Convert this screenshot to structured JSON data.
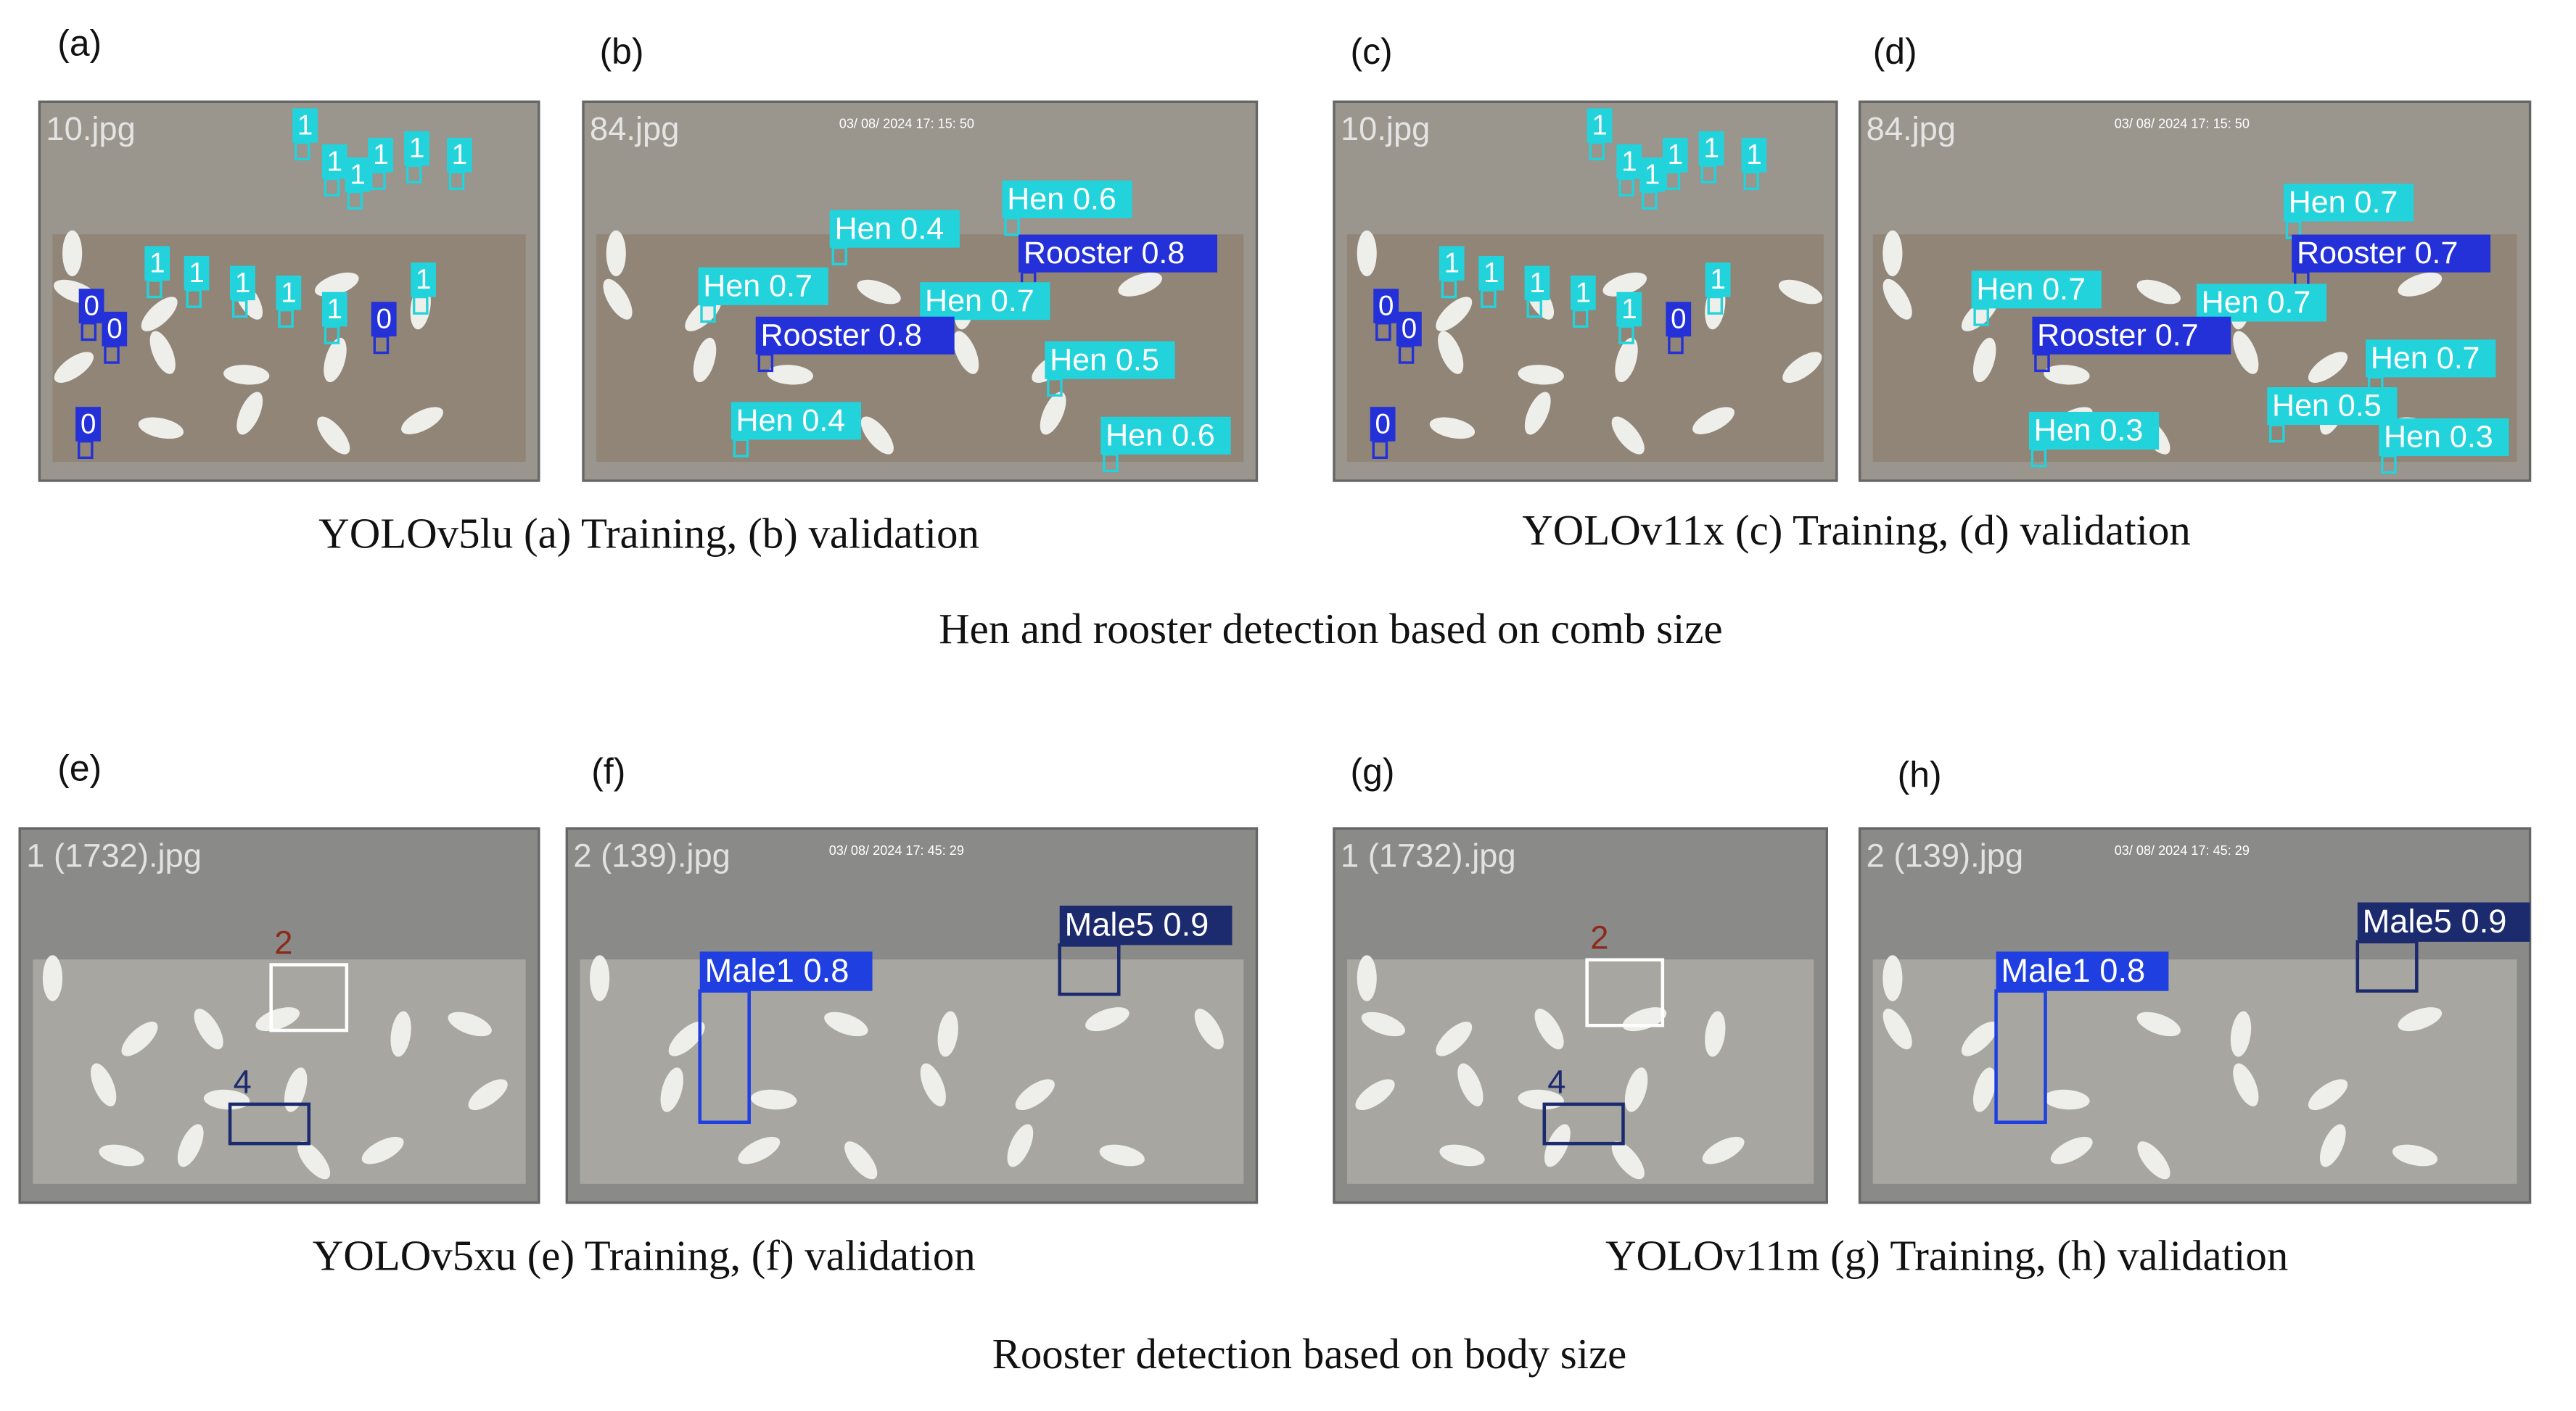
{
  "figure": {
    "panels": [
      {
        "label": "(a)",
        "file": "10.jpg",
        "detections": [
          {
            "label": "1",
            "color": "#22d3dc"
          },
          {
            "label": "1",
            "color": "#22d3dc"
          },
          {
            "label": "1",
            "color": "#22d3dc"
          },
          {
            "label": "1",
            "color": "#22d3dc"
          },
          {
            "label": "1",
            "color": "#22d3dc"
          },
          {
            "label": "1",
            "color": "#22d3dc"
          },
          {
            "label": "1",
            "color": "#22d3dc"
          },
          {
            "label": "1",
            "color": "#22d3dc"
          },
          {
            "label": "1",
            "color": "#22d3dc"
          },
          {
            "label": "1",
            "color": "#22d3dc"
          },
          {
            "label": "1",
            "color": "#22d3dc"
          },
          {
            "label": "1",
            "color": "#22d3dc"
          },
          {
            "label": "0",
            "color": "#2430d8"
          },
          {
            "label": "0",
            "color": "#2430d8"
          },
          {
            "label": "0",
            "color": "#2430d8"
          },
          {
            "label": "0",
            "color": "#2430d8"
          }
        ]
      },
      {
        "label": "(b)",
        "file": "84.jpg",
        "stamp": "03/ 08/ 2024 17: 15: 50",
        "detections": [
          {
            "label": "Hen 0.6",
            "color": "#22d3dc"
          },
          {
            "label": "Hen 0.4",
            "color": "#22d3dc"
          },
          {
            "label": "Rooster 0.8",
            "color": "#2430d8"
          },
          {
            "label": "Hen 0.7",
            "color": "#22d3dc"
          },
          {
            "label": "Hen 0.7",
            "color": "#22d3dc"
          },
          {
            "label": "Rooster 0.8",
            "color": "#2430d8"
          },
          {
            "label": "Hen 0.5",
            "color": "#22d3dc"
          },
          {
            "label": "Hen 0.4",
            "color": "#22d3dc"
          },
          {
            "label": "Hen 0.6",
            "color": "#22d3dc"
          }
        ]
      },
      {
        "label": "(c)",
        "file": "10.jpg",
        "detections": [
          {
            "label": "1",
            "color": "#22d3dc"
          },
          {
            "label": "1",
            "color": "#22d3dc"
          },
          {
            "label": "1",
            "color": "#22d3dc"
          },
          {
            "label": "1",
            "color": "#22d3dc"
          },
          {
            "label": "1",
            "color": "#22d3dc"
          },
          {
            "label": "1",
            "color": "#22d3dc"
          },
          {
            "label": "1",
            "color": "#22d3dc"
          },
          {
            "label": "1",
            "color": "#22d3dc"
          },
          {
            "label": "1",
            "color": "#22d3dc"
          },
          {
            "label": "1",
            "color": "#22d3dc"
          },
          {
            "label": "1",
            "color": "#22d3dc"
          },
          {
            "label": "1",
            "color": "#22d3dc"
          },
          {
            "label": "0",
            "color": "#2430d8"
          },
          {
            "label": "0",
            "color": "#2430d8"
          },
          {
            "label": "0",
            "color": "#2430d8"
          },
          {
            "label": "0",
            "color": "#2430d8"
          }
        ]
      },
      {
        "label": "(d)",
        "file": "84.jpg",
        "stamp": "03/ 08/ 2024 17: 15: 50",
        "detections": [
          {
            "label": "Hen 0.7",
            "color": "#22d3dc"
          },
          {
            "label": "Rooster 0.7",
            "color": "#2430d8"
          },
          {
            "label": "Hen 0.7",
            "color": "#22d3dc"
          },
          {
            "label": "Hen 0.7",
            "color": "#22d3dc"
          },
          {
            "label": "Rooster 0.7",
            "color": "#2430d8"
          },
          {
            "label": "Hen 0.7",
            "color": "#22d3dc"
          },
          {
            "label": "Hen 0.3",
            "color": "#22d3dc"
          },
          {
            "label": "Hen 0.5",
            "color": "#22d3dc"
          },
          {
            "label": "Hen 0.3",
            "color": "#22d3dc"
          }
        ]
      },
      {
        "label": "(e)",
        "file": "1 (1732).jpg",
        "detections": [
          {
            "label": "2",
            "color": "#ffffff"
          },
          {
            "label": "4",
            "color": "#1c2a6e"
          }
        ]
      },
      {
        "label": "(f)",
        "file": "2 (139).jpg",
        "stamp": "03/ 08/ 2024 17: 45: 29",
        "detections": [
          {
            "label": "Male1 0.8",
            "color": "#1f3fe0"
          },
          {
            "label": "Male5 0.9",
            "color": "#1c2a6e"
          }
        ]
      },
      {
        "label": "(g)",
        "file": "1 (1732).jpg",
        "detections": [
          {
            "label": "2",
            "color": "#ffffff"
          },
          {
            "label": "4",
            "color": "#1c2a6e"
          }
        ]
      },
      {
        "label": "(h)",
        "file": "2 (139).jpg",
        "stamp": "03/ 08/ 2024 17: 45: 29",
        "detections": [
          {
            "label": "Male1 0.8",
            "color": "#1f3fe0"
          },
          {
            "label": "Male5 0.9",
            "color": "#1c2a6e"
          }
        ]
      }
    ],
    "captions": [
      "YOLOv5lu (a) Training, (b) validation",
      "YOLOv11x (c) Training, (d) validation",
      "Hen and rooster detection based on comb size",
      "YOLOv5xu (e) Training, (f) validation",
      "YOLOv11m (g) Training, (h) validation",
      "Rooster detection based on body size"
    ]
  }
}
